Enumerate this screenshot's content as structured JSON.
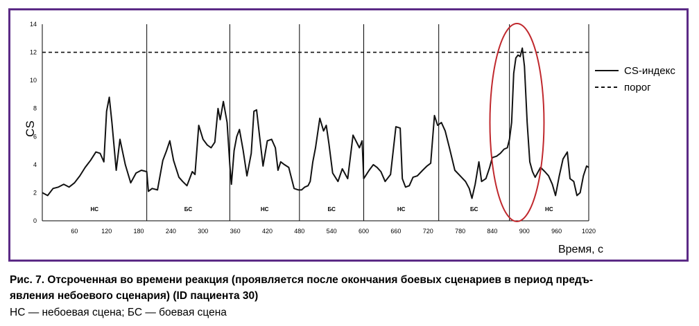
{
  "chart_data": {
    "type": "line",
    "ylabel": "CS",
    "xlabel": "Время, с",
    "xlim": [
      0,
      1020
    ],
    "ylim": [
      0,
      14
    ],
    "x_ticks": [
      60,
      120,
      180,
      240,
      300,
      360,
      420,
      480,
      540,
      600,
      660,
      720,
      780,
      840,
      900,
      960,
      1020
    ],
    "y_ticks": [
      0,
      2,
      4,
      6,
      8,
      10,
      12,
      14
    ],
    "threshold": 12,
    "scene_boundaries": [
      195,
      350,
      480,
      600,
      740,
      872,
      1020
    ],
    "segments": [
      {
        "label": "НС",
        "x_start": 0,
        "x_end": 195
      },
      {
        "label": "БС",
        "x_start": 195,
        "x_end": 350
      },
      {
        "label": "НС",
        "x_start": 350,
        "x_end": 480
      },
      {
        "label": "БС",
        "x_start": 480,
        "x_end": 600
      },
      {
        "label": "НС",
        "x_start": 600,
        "x_end": 740
      },
      {
        "label": "БС",
        "x_start": 740,
        "x_end": 872
      },
      {
        "label": "НС",
        "x_start": 872,
        "x_end": 1020
      }
    ],
    "highlight_circle": {
      "x_center": 886,
      "y_center": 7,
      "color": "#c0282d"
    },
    "series": [
      {
        "name": "CS-индекс",
        "style": "solid",
        "color": "#111111",
        "x": [
          0,
          10,
          20,
          30,
          40,
          50,
          60,
          70,
          80,
          90,
          100,
          108,
          115,
          120,
          125,
          130,
          138,
          145,
          155,
          165,
          175,
          185,
          195,
          198,
          205,
          215,
          225,
          232,
          238,
          245,
          255,
          262,
          270,
          280,
          285,
          292,
          300,
          308,
          315,
          322,
          328,
          332,
          338,
          345,
          350,
          353,
          358,
          363,
          368,
          375,
          382,
          390,
          395,
          400,
          405,
          412,
          420,
          428,
          435,
          440,
          445,
          452,
          460,
          470,
          478,
          484,
          490,
          496,
          500,
          505,
          510,
          518,
          525,
          530,
          535,
          542,
          552,
          560,
          570,
          580,
          592,
          597,
          600,
          605,
          610,
          618,
          625,
          632,
          640,
          650,
          660,
          668,
          672,
          678,
          685,
          692,
          700,
          710,
          718,
          725,
          732,
          738,
          745,
          752,
          760,
          770,
          780,
          790,
          797,
          802,
          808,
          815,
          820,
          828,
          835,
          840,
          848,
          855,
          862,
          868,
          872,
          876,
          880,
          884,
          888,
          892,
          896,
          900,
          905,
          910,
          915,
          920,
          930,
          938,
          945,
          952,
          958,
          965,
          972,
          980,
          985,
          992,
          998,
          1004,
          1010,
          1016,
          1020
        ],
        "y": [
          2.0,
          1.8,
          2.3,
          2.4,
          2.6,
          2.4,
          2.7,
          3.2,
          3.8,
          4.3,
          4.9,
          4.8,
          4.2,
          7.8,
          8.8,
          7.0,
          3.6,
          5.8,
          4.0,
          2.7,
          3.4,
          3.6,
          3.5,
          2.1,
          2.3,
          2.2,
          4.3,
          5.0,
          5.7,
          4.3,
          3.1,
          2.8,
          2.5,
          3.5,
          3.3,
          6.8,
          5.8,
          5.4,
          5.2,
          5.6,
          8.0,
          7.2,
          8.5,
          7.0,
          4.0,
          2.6,
          5.0,
          6.0,
          6.5,
          5.0,
          3.2,
          4.8,
          7.8,
          7.9,
          6.2,
          3.9,
          5.7,
          5.8,
          5.2,
          3.6,
          4.2,
          4.0,
          3.8,
          2.3,
          2.2,
          2.2,
          2.4,
          2.5,
          2.8,
          4.2,
          5.2,
          7.3,
          6.4,
          6.8,
          5.5,
          3.4,
          2.8,
          3.7,
          3.0,
          6.1,
          5.2,
          5.7,
          3.0,
          3.3,
          3.6,
          4.0,
          3.8,
          3.5,
          2.8,
          3.3,
          6.7,
          6.6,
          3.0,
          2.4,
          2.5,
          3.1,
          3.2,
          3.6,
          3.9,
          4.1,
          7.5,
          6.8,
          7.0,
          6.4,
          5.2,
          3.6,
          3.2,
          2.8,
          2.3,
          1.6,
          2.6,
          4.2,
          2.8,
          3.0,
          3.8,
          4.5,
          4.6,
          4.8,
          5.1,
          5.2,
          5.8,
          7.0,
          10.5,
          11.6,
          11.8,
          11.7,
          12.3,
          11.0,
          7.0,
          4.2,
          3.5,
          3.1,
          3.8,
          3.5,
          3.2,
          2.6,
          1.8,
          3.2,
          4.4,
          4.9,
          3.0,
          2.8,
          1.8,
          2.0,
          3.2,
          3.9,
          3.8
        ]
      },
      {
        "name": "порог",
        "style": "dashed",
        "color": "#111111",
        "x": [
          0,
          1020
        ],
        "y": [
          12,
          12
        ]
      }
    ]
  },
  "caption": {
    "line1": "Рис. 7. Отсроченная во времени реакция (проявляется после окончания боевых сценариев в период предъ-",
    "line2": "явления небоевого сценария) (ID пациента 30)",
    "line3": "НС — небоевая сцена; БС — боевая сцена"
  }
}
